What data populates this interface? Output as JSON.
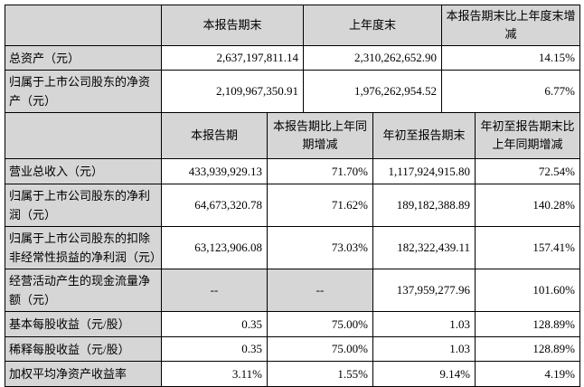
{
  "colors": {
    "cell_shade": "#d6d6d6",
    "border": "#000000",
    "background": "#ffffff",
    "text": "#000000"
  },
  "table1": {
    "headers": [
      "",
      "本报告期末",
      "上年度末",
      "本报告期末比上年度末增减"
    ],
    "rows": [
      {
        "label": "总资产（元）",
        "values": [
          "2,637,197,811.14",
          "2,310,262,652.90",
          "14.15%"
        ]
      },
      {
        "label": "归属于上市公司股东的净资产（元）",
        "values": [
          "2,109,967,350.91",
          "1,976,262,954.52",
          "6.77%"
        ]
      }
    ]
  },
  "table2": {
    "headers": [
      "",
      "本报告期",
      "本报告期比上年同期增减",
      "年初至报告期末",
      "年初至报告期末比上年同期增减"
    ],
    "rows": [
      {
        "label": "营业总收入（元）",
        "values": [
          "433,939,929.13",
          "71.70%",
          "1,117,924,915.80",
          "72.54%"
        ]
      },
      {
        "label": "归属于上市公司股东的净利润（元）",
        "values": [
          "64,673,320.78",
          "71.62%",
          "189,182,388.89",
          "140.28%"
        ]
      },
      {
        "label": "归属于上市公司股东的扣除非经常性损益的净利润（元）",
        "values": [
          "63,123,906.08",
          "73.03%",
          "182,322,439.11",
          "157.41%"
        ]
      },
      {
        "label": "经营活动产生的现金流量净额（元）",
        "values": [
          "--",
          "--",
          "137,959,277.96",
          "101.60%"
        ],
        "shaded_value_indices": [
          0,
          1
        ]
      },
      {
        "label": "基本每股收益（元/股）",
        "values": [
          "0.35",
          "75.00%",
          "1.03",
          "128.89%"
        ]
      },
      {
        "label": "稀释每股收益（元/股）",
        "values": [
          "0.35",
          "75.00%",
          "1.03",
          "128.89%"
        ]
      },
      {
        "label": "加权平均净资产收益率",
        "values": [
          "3.11%",
          "1.55%",
          "9.14%",
          "4.19%"
        ]
      }
    ]
  }
}
